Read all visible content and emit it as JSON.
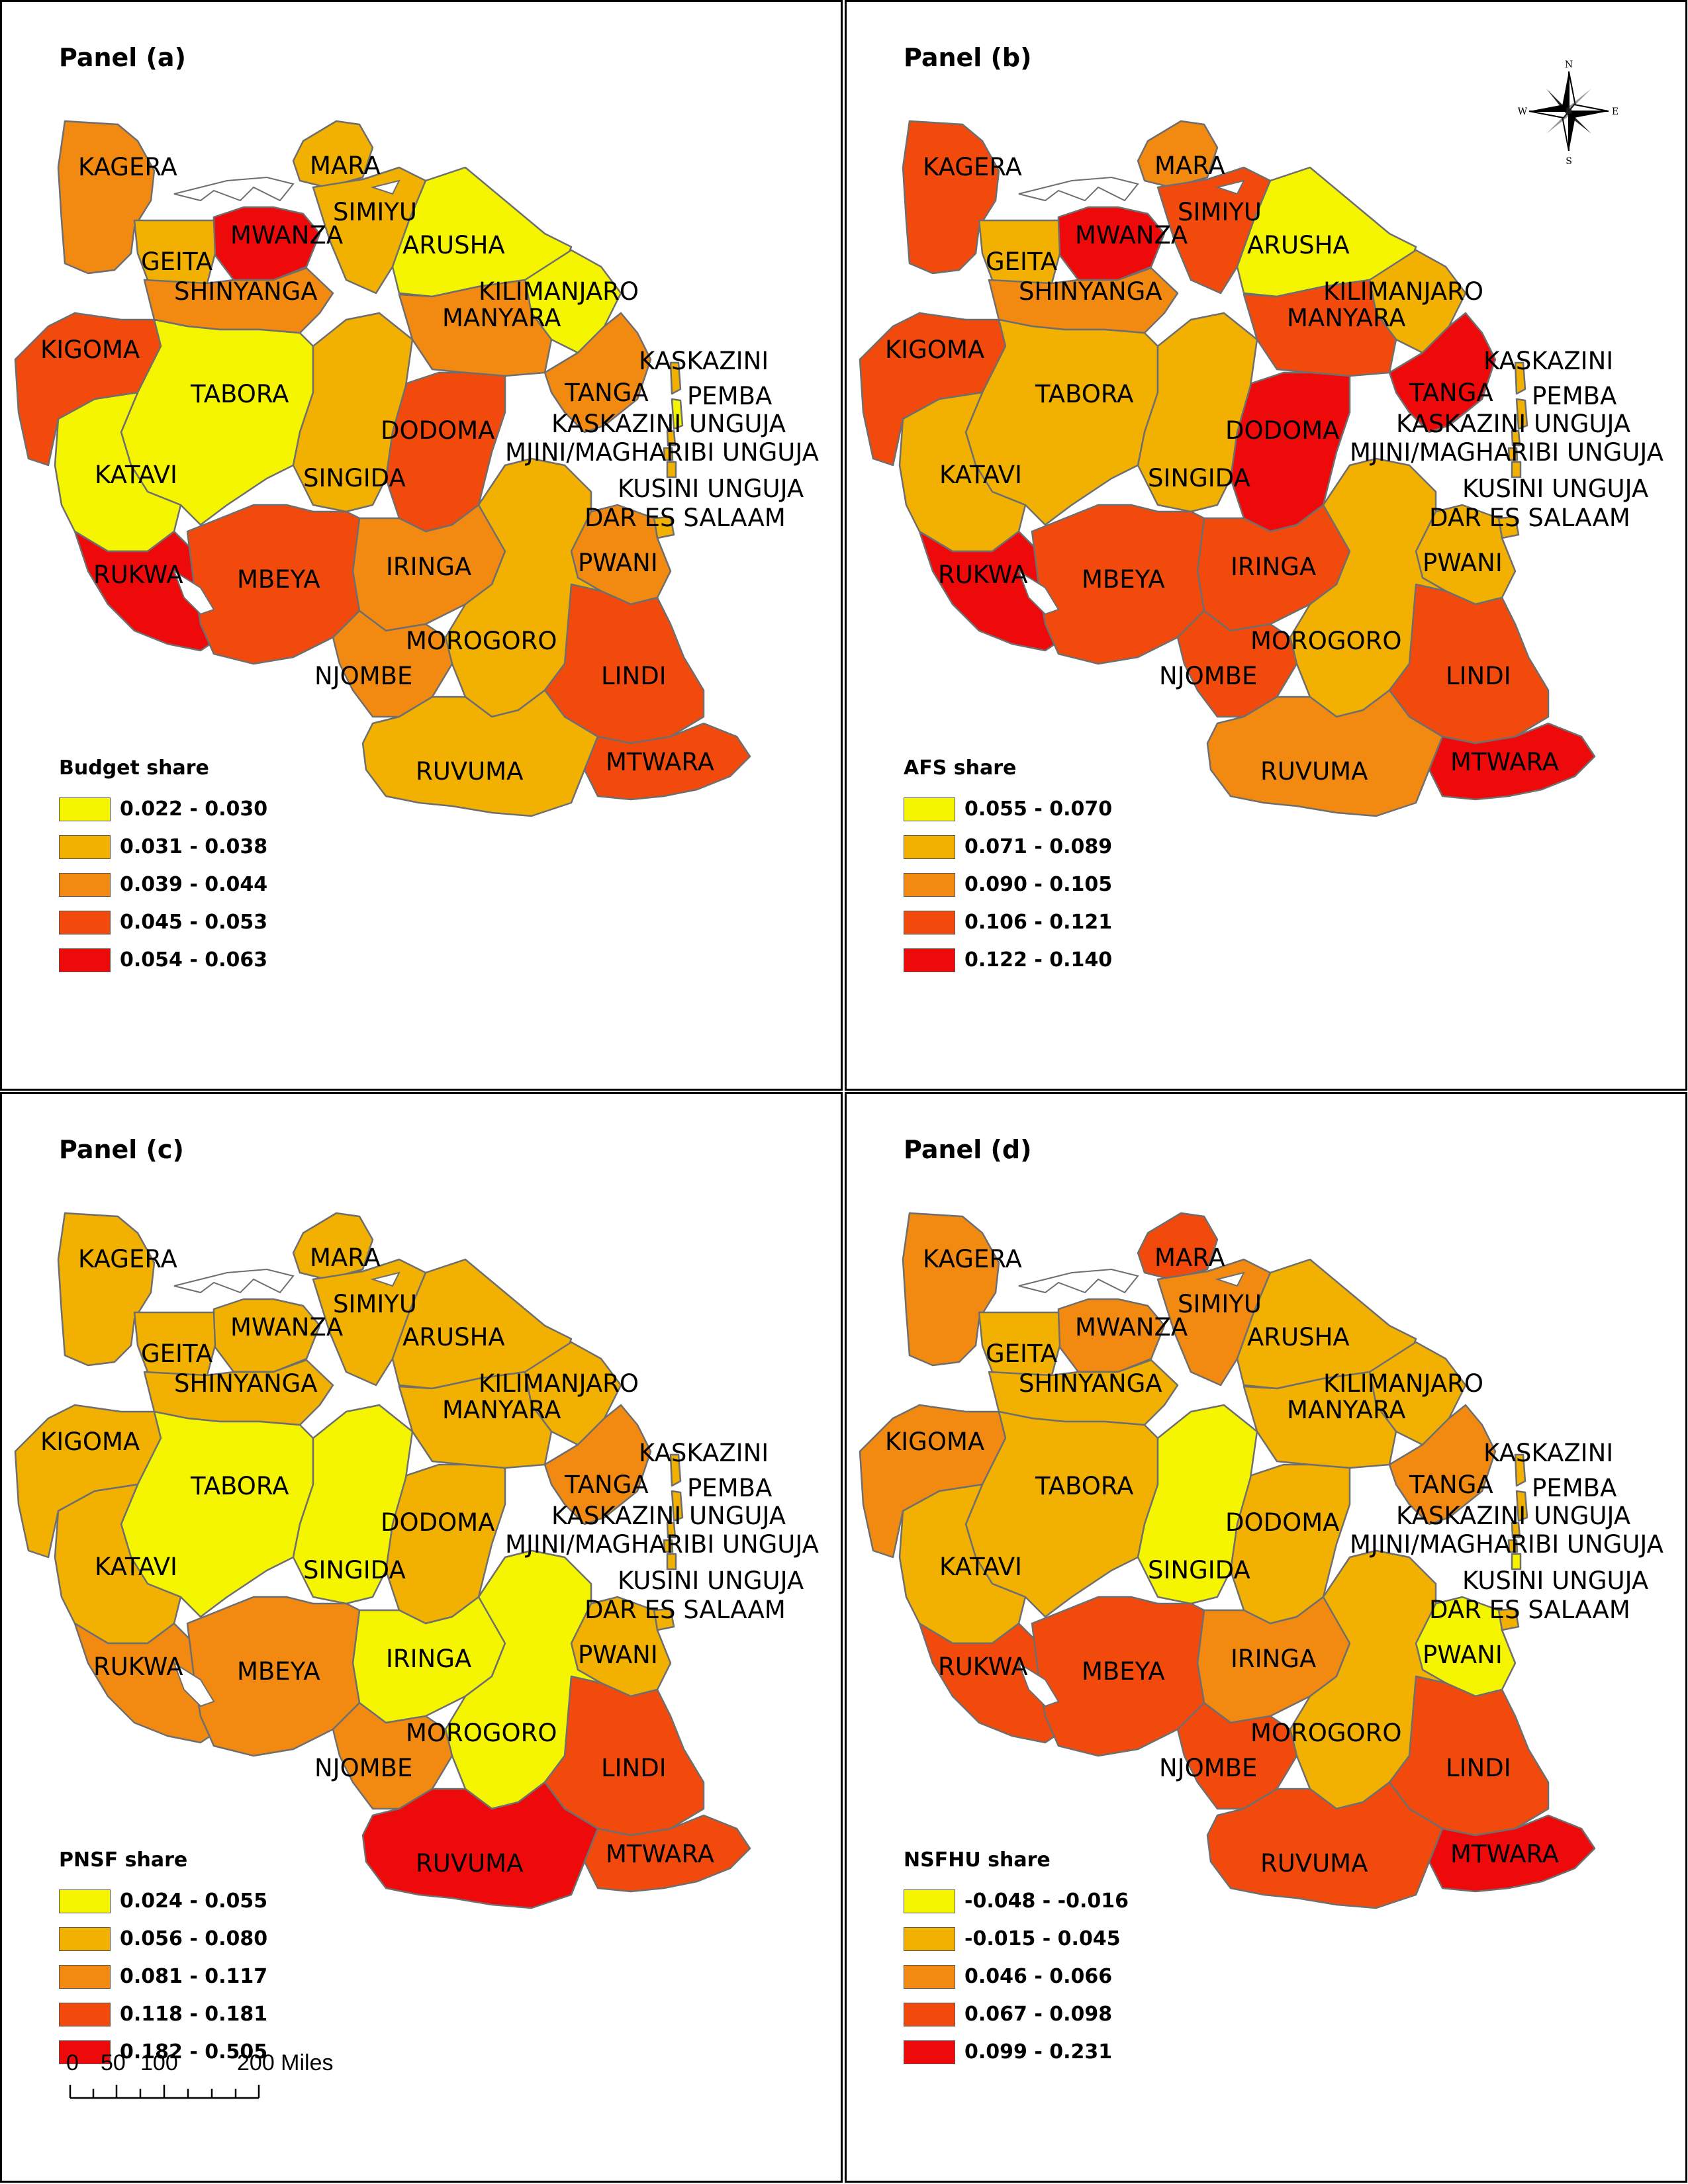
{
  "regions": [
    {
      "id": "KAGERA",
      "label": "KAGERA"
    },
    {
      "id": "MARA",
      "label": "MARA"
    },
    {
      "id": "SIMIYU",
      "label": "SIMIYU"
    },
    {
      "id": "MWANZA",
      "label": "MWANZA"
    },
    {
      "id": "GEITA",
      "label": "GEITA"
    },
    {
      "id": "ARUSHA",
      "label": "ARUSHA"
    },
    {
      "id": "SHINYANGA",
      "label": "SHINYANGA"
    },
    {
      "id": "KILIMANJARO",
      "label": "KILIMANJARO"
    },
    {
      "id": "MANYARA",
      "label": "MANYARA"
    },
    {
      "id": "KIGOMA",
      "label": "KIGOMA"
    },
    {
      "id": "KASKAZINI",
      "label": "KASKAZINI"
    },
    {
      "id": "TABORA",
      "label": "TABORA"
    },
    {
      "id": "TANGA",
      "label": "TANGA"
    },
    {
      "id": "PEMBA",
      "label": "PEMBA"
    },
    {
      "id": "KASKAZINI_UNGUJA",
      "label": "KASKAZINI UNGUJA"
    },
    {
      "id": "DODOMA",
      "label": "DODOMA"
    },
    {
      "id": "MJINI_MAGHARIBI",
      "label": "MJINI/MAGHARIBI UNGUJA"
    },
    {
      "id": "KATAVI",
      "label": "KATAVI"
    },
    {
      "id": "SINGIDA",
      "label": "SINGIDA"
    },
    {
      "id": "KUSINI_UNGUJA",
      "label": "KUSINI UNGUJA"
    },
    {
      "id": "DAR_ES_SALAAM",
      "label": "DAR ES SALAAM"
    },
    {
      "id": "PWANI",
      "label": "PWANI"
    },
    {
      "id": "RUKWA",
      "label": "RUKWA"
    },
    {
      "id": "IRINGA",
      "label": "IRINGA"
    },
    {
      "id": "MBEYA",
      "label": "MBEYA"
    },
    {
      "id": "MOROGORO",
      "label": "MOROGORO"
    },
    {
      "id": "LINDI",
      "label": "LINDI"
    },
    {
      "id": "NJOMBE",
      "label": "NJOMBE"
    },
    {
      "id": "RUVUMA",
      "label": "RUVUMA"
    },
    {
      "id": "MTWARA",
      "label": "MTWARA"
    }
  ],
  "class_colors": [
    "#f5f500",
    "#f2b100",
    "#f28a12",
    "#f24a0c",
    "#ee0a0a"
  ],
  "border_color": "#6e6e6e",
  "panels": [
    {
      "title": "Panel (a)",
      "legend_title": "Budget share",
      "legend_labels": [
        "0.022 - 0.030",
        "0.031 - 0.038",
        "0.039 - 0.044",
        "0.045 - 0.053",
        "0.054 - 0.063"
      ],
      "classes": {
        "KAGERA": 2,
        "MARA": 1,
        "SIMIYU": 1,
        "MWANZA": 4,
        "GEITA": 1,
        "ARUSHA": 0,
        "SHINYANGA": 2,
        "KILIMANJARO": 0,
        "MANYARA": 2,
        "KIGOMA": 3,
        "KASKAZINI": 1,
        "TABORA": 0,
        "TANGA": 2,
        "PEMBA": 0,
        "KASKAZINI_UNGUJA": 1,
        "DODOMA": 3,
        "MJINI_MAGHARIBI": 1,
        "KATAVI": 0,
        "SINGIDA": 1,
        "KUSINI_UNGUJA": 1,
        "DAR_ES_SALAAM": 1,
        "PWANI": 2,
        "RUKWA": 4,
        "IRINGA": 2,
        "MBEYA": 3,
        "MOROGORO": 1,
        "LINDI": 3,
        "NJOMBE": 2,
        "RUVUMA": 1,
        "MTWARA": 3
      }
    },
    {
      "title": "Panel (b)",
      "legend_title": "AFS share",
      "legend_labels": [
        "0.055 - 0.070",
        "0.071 - 0.089",
        "0.090 - 0.105",
        "0.106 - 0.121",
        "0.122 - 0.140"
      ],
      "classes": {
        "KAGERA": 3,
        "MARA": 2,
        "SIMIYU": 3,
        "MWANZA": 4,
        "GEITA": 1,
        "ARUSHA": 0,
        "SHINYANGA": 2,
        "KILIMANJARO": 1,
        "MANYARA": 3,
        "KIGOMA": 3,
        "KASKAZINI": 1,
        "TABORA": 1,
        "TANGA": 4,
        "PEMBA": 1,
        "KASKAZINI_UNGUJA": 1,
        "DODOMA": 4,
        "MJINI_MAGHARIBI": 1,
        "KATAVI": 1,
        "SINGIDA": 1,
        "KUSINI_UNGUJA": 1,
        "DAR_ES_SALAAM": 1,
        "PWANI": 1,
        "RUKWA": 4,
        "IRINGA": 3,
        "MBEYA": 3,
        "MOROGORO": 1,
        "LINDI": 3,
        "NJOMBE": 3,
        "RUVUMA": 2,
        "MTWARA": 4
      }
    },
    {
      "title": "Panel (c)",
      "legend_title": "PNSF share",
      "legend_labels": [
        "0.024 - 0.055",
        "0.056 - 0.080",
        "0.081 - 0.117",
        "0.118 - 0.181",
        "0.182 - 0.505"
      ],
      "classes": {
        "KAGERA": 1,
        "MARA": 1,
        "SIMIYU": 1,
        "MWANZA": 1,
        "GEITA": 1,
        "ARUSHA": 1,
        "SHINYANGA": 1,
        "KILIMANJARO": 1,
        "MANYARA": 1,
        "KIGOMA": 1,
        "KASKAZINI": 1,
        "TABORA": 0,
        "TANGA": 2,
        "PEMBA": 1,
        "KASKAZINI_UNGUJA": 1,
        "DODOMA": 1,
        "MJINI_MAGHARIBI": 1,
        "KATAVI": 1,
        "SINGIDA": 0,
        "KUSINI_UNGUJA": 1,
        "DAR_ES_SALAAM": 1,
        "PWANI": 1,
        "RUKWA": 2,
        "IRINGA": 0,
        "MBEYA": 2,
        "MOROGORO": 0,
        "LINDI": 3,
        "NJOMBE": 2,
        "RUVUMA": 4,
        "MTWARA": 3
      }
    },
    {
      "title": "Panel (d)",
      "legend_title": "NSFHU share",
      "legend_labels": [
        "-0.048 - -0.016",
        "-0.015 - 0.045",
        "0.046 - 0.066",
        "0.067 - 0.098",
        "0.099 - 0.231"
      ],
      "classes": {
        "KAGERA": 2,
        "MARA": 3,
        "SIMIYU": 2,
        "MWANZA": 2,
        "GEITA": 1,
        "ARUSHA": 1,
        "SHINYANGA": 1,
        "KILIMANJARO": 1,
        "MANYARA": 1,
        "KIGOMA": 2,
        "KASKAZINI": 1,
        "TABORA": 1,
        "TANGA": 2,
        "PEMBA": 1,
        "KASKAZINI_UNGUJA": 1,
        "DODOMA": 1,
        "MJINI_MAGHARIBI": 1,
        "KATAVI": 1,
        "SINGIDA": 0,
        "KUSINI_UNGUJA": 0,
        "DAR_ES_SALAAM": 1,
        "PWANI": 0,
        "RUKWA": 3,
        "IRINGA": 2,
        "MBEYA": 3,
        "MOROGORO": 1,
        "LINDI": 3,
        "NJOMBE": 3,
        "RUVUMA": 3,
        "MTWARA": 4
      }
    }
  ],
  "compass": {
    "n": "N",
    "s": "S",
    "e": "E",
    "w": "W"
  },
  "scale_bar": {
    "ticks": [
      "0",
      "50",
      "100",
      "200 Miles"
    ]
  }
}
